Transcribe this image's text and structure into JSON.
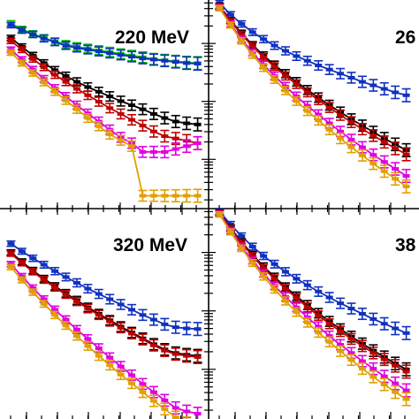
{
  "chart_data": [
    {
      "type": "line",
      "panel": "top-left",
      "label": "220 MeV",
      "x": [
        0.05,
        0.1,
        0.15,
        0.2,
        0.25,
        0.3,
        0.35,
        0.4,
        0.45,
        0.5,
        0.55,
        0.6,
        0.65,
        0.7,
        0.75,
        0.8,
        0.85,
        0.9
      ],
      "ylog": true,
      "series": [
        {
          "color": "#00c000",
          "values": [
            -0.65,
            -0.75,
            -0.83,
            -0.9,
            -0.96,
            -1.01,
            -1.05,
            -1.08,
            -1.11,
            -1.14,
            -1.17,
            -1.2,
            -1.23,
            -1.26,
            -1.28,
            -1.3,
            -1.32,
            -1.33
          ]
        },
        {
          "color": "#1030c0",
          "values": [
            -0.68,
            -0.77,
            -0.84,
            -0.91,
            -0.97,
            -1.03,
            -1.07,
            -1.1,
            -1.13,
            -1.16,
            -1.19,
            -1.22,
            -1.25,
            -1.27,
            -1.29,
            -1.31,
            -1.33,
            -1.34
          ]
        },
        {
          "color": "#000000",
          "values": [
            -0.9,
            -1.05,
            -1.2,
            -1.33,
            -1.45,
            -1.55,
            -1.65,
            -1.74,
            -1.82,
            -1.9,
            -1.98,
            -2.05,
            -2.12,
            -2.2,
            -2.27,
            -2.33,
            -2.36,
            -2.38
          ]
        },
        {
          "color": "#c00000",
          "values": [
            -0.95,
            -1.1,
            -1.26,
            -1.4,
            -1.53,
            -1.65,
            -1.77,
            -1.88,
            -1.99,
            -2.1,
            -2.2,
            -2.3,
            -2.4,
            -2.5,
            -2.58,
            -2.62,
            -2.66,
            -2.7
          ]
        },
        {
          "color": "#e000e0",
          "values": [
            -1.1,
            -1.27,
            -1.44,
            -1.6,
            -1.76,
            -1.9,
            -2.05,
            -2.19,
            -2.33,
            -2.47,
            -2.6,
            -2.7,
            -2.85,
            -2.85,
            -2.85,
            -2.8,
            -2.75,
            -2.7
          ]
        },
        {
          "color": "#e0a000",
          "values": [
            -1.15,
            -1.33,
            -1.5,
            -1.66,
            -1.82,
            -1.97,
            -2.12,
            -2.27,
            -2.41,
            -2.55,
            -2.65,
            -2.75,
            -3.6,
            -3.6,
            -3.6,
            -3.6,
            -3.6,
            -3.6
          ]
        }
      ]
    },
    {
      "type": "line",
      "panel": "top-right",
      "label": "26",
      "x": [
        0.05,
        0.1,
        0.15,
        0.2,
        0.25,
        0.3,
        0.35,
        0.4,
        0.45,
        0.5,
        0.55,
        0.6,
        0.65,
        0.7,
        0.75,
        0.8,
        0.85,
        0.9
      ],
      "ylog": true,
      "series": [
        {
          "color": "#1030c0",
          "values": [
            -0.3,
            -0.5,
            -0.66,
            -0.8,
            -0.92,
            -1.03,
            -1.12,
            -1.21,
            -1.29,
            -1.37,
            -1.44,
            -1.51,
            -1.58,
            -1.65,
            -1.71,
            -1.77,
            -1.83,
            -1.88
          ]
        },
        {
          "color": "#000000",
          "values": [
            -0.35,
            -0.6,
            -0.82,
            -1.02,
            -1.2,
            -1.36,
            -1.51,
            -1.65,
            -1.79,
            -1.92,
            -2.05,
            -2.17,
            -2.29,
            -2.4,
            -2.51,
            -2.62,
            -2.72,
            -2.82
          ]
        },
        {
          "color": "#c00000",
          "values": [
            -0.36,
            -0.61,
            -0.84,
            -1.04,
            -1.23,
            -1.39,
            -1.55,
            -1.69,
            -1.83,
            -1.96,
            -2.09,
            -2.22,
            -2.34,
            -2.46,
            -2.57,
            -2.68,
            -2.79,
            -2.89
          ]
        },
        {
          "color": "#e000e0",
          "values": [
            -0.38,
            -0.66,
            -0.92,
            -1.15,
            -1.36,
            -1.55,
            -1.73,
            -1.9,
            -2.06,
            -2.21,
            -2.36,
            -2.5,
            -2.64,
            -2.77,
            -2.9,
            -3.02,
            -3.14,
            -3.26
          ]
        },
        {
          "color": "#e0a000",
          "values": [
            -0.39,
            -0.68,
            -0.95,
            -1.19,
            -1.41,
            -1.61,
            -1.8,
            -1.98,
            -2.15,
            -2.31,
            -2.47,
            -2.62,
            -2.77,
            -2.91,
            -3.05,
            -3.18,
            -3.31,
            -3.44
          ]
        }
      ]
    },
    {
      "type": "line",
      "panel": "bottom-left",
      "label": "320 MeV",
      "x": [
        0.05,
        0.1,
        0.15,
        0.2,
        0.25,
        0.3,
        0.35,
        0.4,
        0.45,
        0.5,
        0.55,
        0.6,
        0.65,
        0.7,
        0.75,
        0.8,
        0.85,
        0.9
      ],
      "ylog": true,
      "series": [
        {
          "color": "#1030c0",
          "values": [
            -0.85,
            -0.98,
            -1.1,
            -1.21,
            -1.32,
            -1.42,
            -1.52,
            -1.62,
            -1.71,
            -1.8,
            -1.89,
            -1.98,
            -2.07,
            -2.15,
            -2.23,
            -2.28,
            -2.3,
            -2.31
          ]
        },
        {
          "color": "#000000",
          "values": [
            -1.0,
            -1.16,
            -1.31,
            -1.45,
            -1.58,
            -1.7,
            -1.82,
            -1.94,
            -2.05,
            -2.16,
            -2.27,
            -2.37,
            -2.47,
            -2.57,
            -2.66,
            -2.72,
            -2.75,
            -2.77
          ]
        },
        {
          "color": "#c00000",
          "values": [
            -1.02,
            -1.18,
            -1.33,
            -1.47,
            -1.6,
            -1.72,
            -1.84,
            -1.96,
            -2.07,
            -2.18,
            -2.29,
            -2.39,
            -2.49,
            -2.59,
            -2.68,
            -2.74,
            -2.77,
            -2.79
          ]
        },
        {
          "color": "#e000e0",
          "values": [
            -1.2,
            -1.41,
            -1.61,
            -1.8,
            -1.98,
            -2.15,
            -2.32,
            -2.48,
            -2.64,
            -2.8,
            -2.95,
            -3.1,
            -3.25,
            -3.39,
            -3.53,
            -3.66,
            -3.72,
            -3.76
          ]
        },
        {
          "color": "#e0a000",
          "values": [
            -1.25,
            -1.47,
            -1.68,
            -1.88,
            -2.07,
            -2.25,
            -2.43,
            -2.6,
            -2.77,
            -2.93,
            -3.09,
            -3.24,
            -3.39,
            -3.54,
            -3.68,
            -3.82,
            -3.92,
            -4.0
          ]
        }
      ]
    },
    {
      "type": "line",
      "panel": "bottom-right",
      "label": "38",
      "x": [
        0.05,
        0.1,
        0.15,
        0.2,
        0.25,
        0.3,
        0.35,
        0.4,
        0.45,
        0.5,
        0.55,
        0.6,
        0.65,
        0.7,
        0.75,
        0.8,
        0.85,
        0.9
      ],
      "ylog": true,
      "series": [
        {
          "color": "#1030c0",
          "values": [
            -0.3,
            -0.52,
            -0.72,
            -0.9,
            -1.06,
            -1.2,
            -1.33,
            -1.45,
            -1.56,
            -1.67,
            -1.77,
            -1.87,
            -1.96,
            -2.05,
            -2.14,
            -2.22,
            -2.3,
            -2.38
          ]
        },
        {
          "color": "#000000",
          "values": [
            -0.32,
            -0.58,
            -0.82,
            -1.04,
            -1.24,
            -1.42,
            -1.59,
            -1.75,
            -1.9,
            -2.04,
            -2.18,
            -2.31,
            -2.44,
            -2.56,
            -2.68,
            -2.79,
            -2.9,
            -3.0
          ]
        },
        {
          "color": "#c00000",
          "values": [
            -0.33,
            -0.59,
            -0.84,
            -1.06,
            -1.27,
            -1.45,
            -1.62,
            -1.78,
            -1.94,
            -2.08,
            -2.22,
            -2.35,
            -2.48,
            -2.6,
            -2.72,
            -2.83,
            -2.94,
            -3.04
          ]
        },
        {
          "color": "#e000e0",
          "values": [
            -0.34,
            -0.63,
            -0.9,
            -1.14,
            -1.36,
            -1.57,
            -1.76,
            -1.94,
            -2.11,
            -2.27,
            -2.43,
            -2.58,
            -2.72,
            -2.86,
            -2.99,
            -3.12,
            -3.24,
            -3.36
          ]
        },
        {
          "color": "#e0a000",
          "values": [
            -0.35,
            -0.65,
            -0.93,
            -1.18,
            -1.41,
            -1.63,
            -1.83,
            -2.02,
            -2.2,
            -2.37,
            -2.53,
            -2.69,
            -2.84,
            -2.99,
            -3.13,
            -3.26,
            -3.39,
            -3.51
          ]
        }
      ]
    }
  ]
}
